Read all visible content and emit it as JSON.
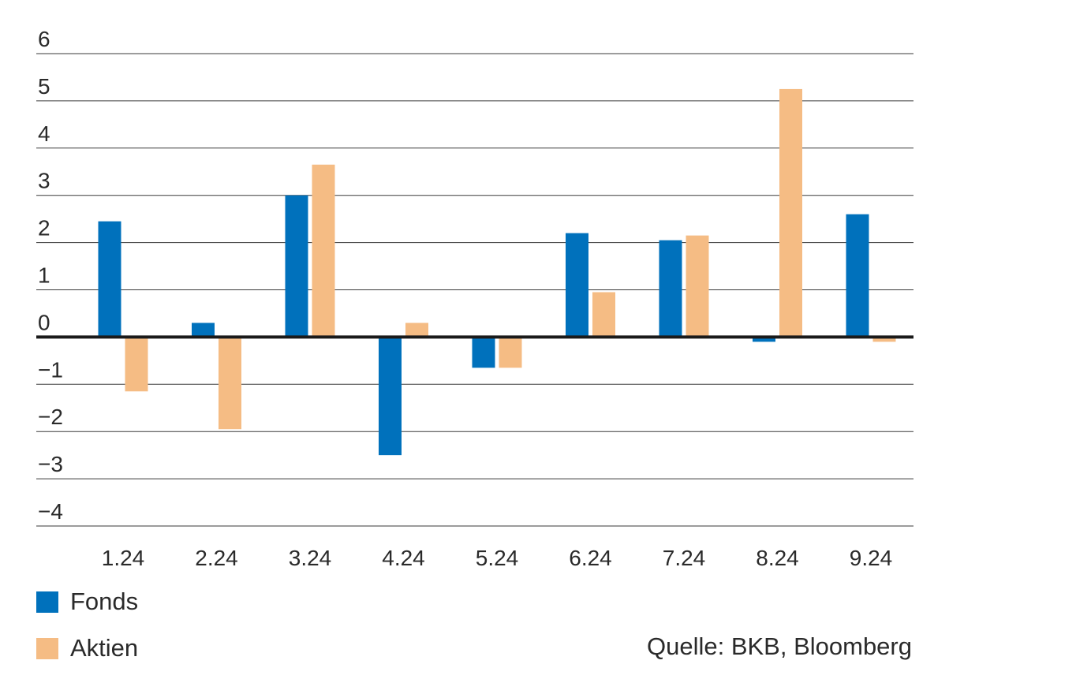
{
  "chart_data": {
    "type": "bar",
    "categories": [
      "1.24",
      "2.24",
      "3.24",
      "4.24",
      "5.24",
      "6.24",
      "7.24",
      "8.24",
      "9.24"
    ],
    "series": [
      {
        "name": "Fonds",
        "color": "#0071BC",
        "values": [
          2.45,
          0.3,
          3.0,
          -2.5,
          -0.65,
          2.2,
          2.05,
          -0.1,
          2.6
        ]
      },
      {
        "name": "Aktien",
        "color": "#F5BC84",
        "values": [
          -1.15,
          -1.95,
          3.65,
          0.3,
          -0.65,
          0.95,
          2.15,
          5.25,
          -0.1
        ]
      }
    ],
    "ylim": [
      -4,
      6
    ],
    "yticks": [
      "6",
      "5",
      "4",
      "3",
      "2",
      "1",
      "0",
      "−1",
      "−2",
      "−3",
      "−4"
    ],
    "grid": true,
    "legend_position": "bottom-left",
    "source": "Quelle: BKB, Bloomberg"
  }
}
